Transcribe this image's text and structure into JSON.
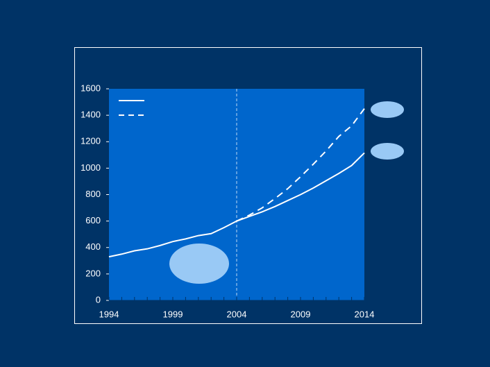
{
  "chart_data": {
    "type": "line",
    "xlim": [
      1994,
      2014
    ],
    "xticks": [
      1994,
      1999,
      2004,
      2009,
      2014
    ],
    "xminorticks": [
      1994,
      1995,
      1996,
      1997,
      1998,
      1999,
      2000,
      2001,
      2002,
      2003,
      2004,
      2005,
      2006,
      2007,
      2008,
      2009,
      2010,
      2011,
      2012,
      2013,
      2014
    ],
    "ylim": [
      0,
      1600
    ],
    "yticks": [
      0,
      200,
      400,
      600,
      800,
      1000,
      1200,
      1400,
      1600
    ],
    "vline": 2004,
    "series": [
      {
        "color": "#ffffff",
        "dash": false,
        "x": [
          1994,
          1995,
          1996,
          1997,
          1998,
          1999,
          2000,
          2001,
          2002,
          2003,
          2004,
          2005,
          2006,
          2007,
          2008,
          2009,
          2010,
          2011,
          2012,
          2013,
          2014
        ],
        "values": [
          330,
          350,
          375,
          390,
          415,
          445,
          465,
          490,
          505,
          550,
          600,
          635,
          670,
          710,
          755,
          800,
          850,
          905,
          960,
          1020,
          1115
        ]
      },
      {
        "color": "#ffffff",
        "dash": true,
        "x": [
          2004,
          2005,
          2006,
          2007,
          2008,
          2009,
          2010,
          2011,
          2012,
          2013,
          2014
        ],
        "values": [
          600,
          645,
          700,
          770,
          845,
          935,
          1030,
          1130,
          1240,
          1320,
          1450
        ]
      }
    ]
  }
}
